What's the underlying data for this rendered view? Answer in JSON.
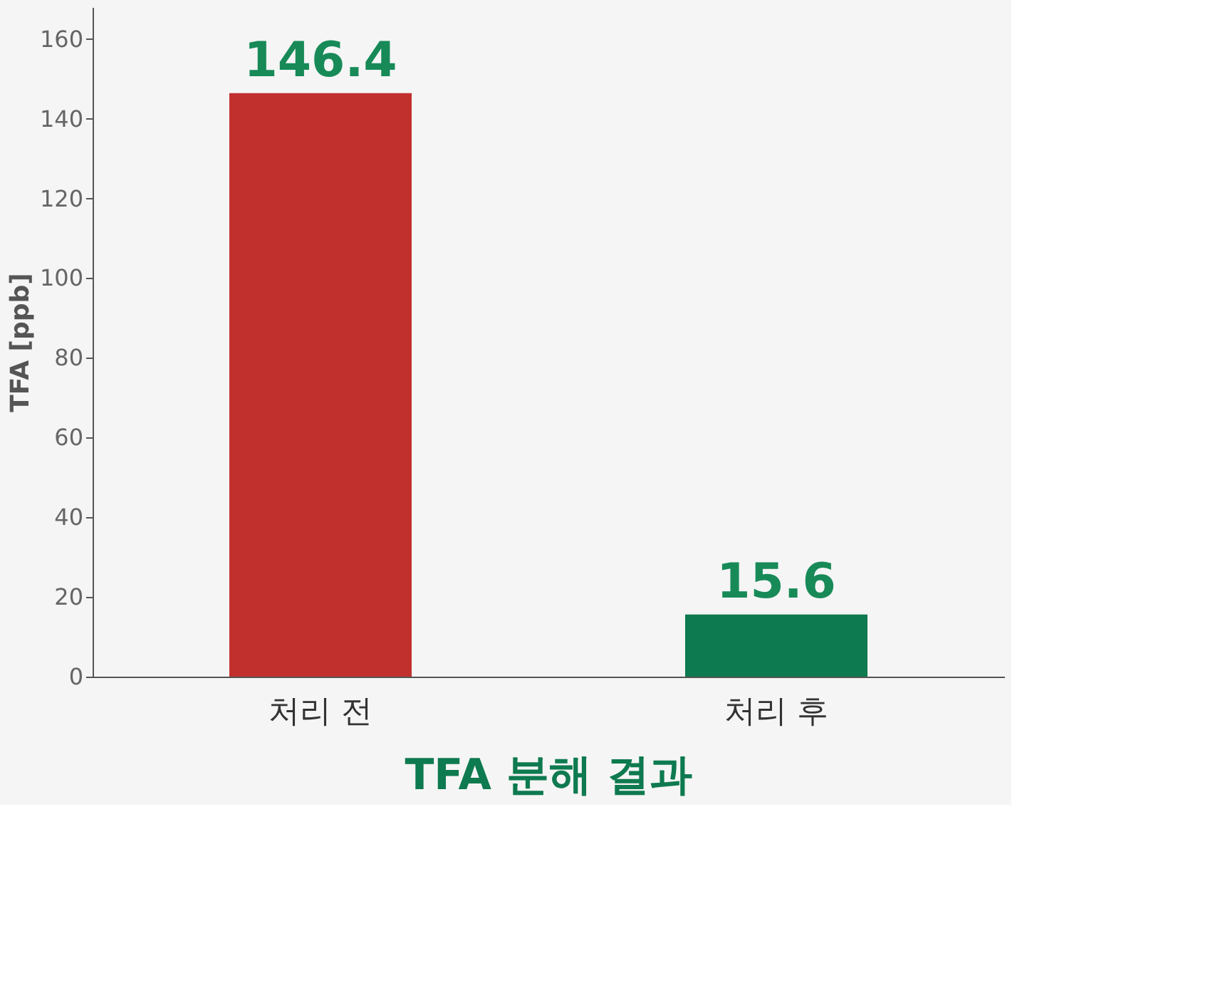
{
  "chart_data": {
    "type": "bar",
    "title": "TFA 분해 결과",
    "ylabel": "TFA [ppb]",
    "categories": [
      "처리 전",
      "처리 후"
    ],
    "values": [
      146.4,
      15.6
    ],
    "colors": [
      "#c2302e",
      "#0e7a4f"
    ],
    "ylim": [
      0,
      168
    ],
    "yticks": [
      0,
      20,
      40,
      60,
      80,
      100,
      120,
      140,
      160
    ],
    "data_labels": true,
    "grid": false,
    "legend": false
  }
}
